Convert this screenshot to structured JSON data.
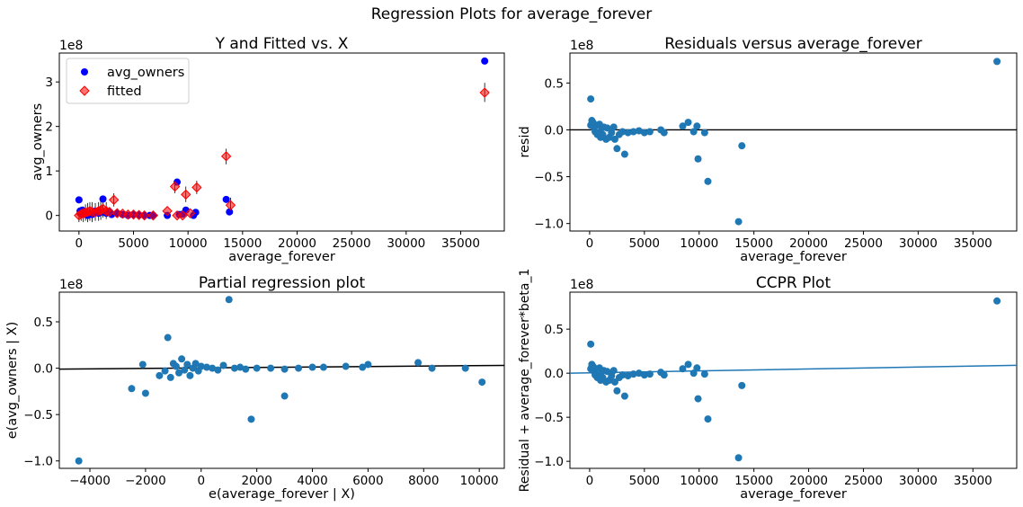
{
  "figure": {
    "suptitle": "Regression Plots for average_forever",
    "colors": {
      "blue": "#0000ff",
      "red": "#ff0000",
      "steel": "#1f77b4",
      "black": "#000000"
    }
  },
  "chart_data": [
    {
      "id": "yfit",
      "type": "scatter",
      "title": "Y and Fitted vs. X",
      "xlabel": "average_forever",
      "ylabel": "avg_owners",
      "offset_label": "1e8",
      "xlim": [
        -1800,
        39000
      ],
      "ylim": [
        -0.35,
        3.65
      ],
      "xticks": [
        0,
        5000,
        10000,
        15000,
        20000,
        25000,
        30000,
        35000
      ],
      "xtick_labels": [
        "0",
        "5000",
        "10000",
        "15000",
        "20000",
        "25000",
        "30000",
        "35000"
      ],
      "yticks": [
        0,
        1,
        2,
        3
      ],
      "ytick_labels": [
        "0",
        "1",
        "2",
        "3"
      ],
      "legend": {
        "position": "top-left",
        "entries": [
          "avg_owners",
          "fitted"
        ]
      },
      "series": [
        {
          "name": "avg_owners",
          "marker": "circle",
          "color": "#0000ff",
          "points": [
            [
              0,
              0.35
            ],
            [
              100,
              0.1
            ],
            [
              200,
              0.05
            ],
            [
              300,
              0.12
            ],
            [
              400,
              0.02
            ],
            [
              600,
              0.08
            ],
            [
              800,
              0.0
            ],
            [
              1000,
              0.05
            ],
            [
              1200,
              0.02
            ],
            [
              1500,
              0.1
            ],
            [
              1800,
              0.05
            ],
            [
              2000,
              0.07
            ],
            [
              2200,
              0.37
            ],
            [
              2500,
              0.05
            ],
            [
              2800,
              0.08
            ],
            [
              3000,
              0.02
            ],
            [
              3500,
              0.05
            ],
            [
              4000,
              0.02
            ],
            [
              4500,
              0.0
            ],
            [
              5000,
              0.02
            ],
            [
              5500,
              0.01
            ],
            [
              6000,
              0.0
            ],
            [
              6500,
              0.0
            ],
            [
              6800,
              0.0
            ],
            [
              8100,
              0.0
            ],
            [
              9000,
              0.75
            ],
            [
              9200,
              0.02
            ],
            [
              9500,
              0.03
            ],
            [
              9800,
              0.12
            ],
            [
              10500,
              0.0
            ],
            [
              10700,
              0.07
            ],
            [
              13500,
              0.36
            ],
            [
              13800,
              0.08
            ],
            [
              37200,
              3.47
            ]
          ]
        },
        {
          "name": "fitted",
          "marker": "diamond",
          "color": "#ff0000",
          "points": [
            [
              0,
              0.0
            ],
            [
              200,
              0.03
            ],
            [
              400,
              0.05
            ],
            [
              600,
              0.06
            ],
            [
              800,
              0.08
            ],
            [
              1000,
              0.1
            ],
            [
              1200,
              0.08
            ],
            [
              1500,
              0.07
            ],
            [
              1800,
              0.1
            ],
            [
              2000,
              0.12
            ],
            [
              2200,
              0.15
            ],
            [
              2500,
              0.1
            ],
            [
              2800,
              0.08
            ],
            [
              3200,
              0.35
            ],
            [
              3500,
              0.05
            ],
            [
              4000,
              0.04
            ],
            [
              4500,
              0.02
            ],
            [
              5000,
              0.02
            ],
            [
              5500,
              0.01
            ],
            [
              6000,
              0.0
            ],
            [
              6800,
              0.0
            ],
            [
              8100,
              0.1
            ],
            [
              8800,
              0.65
            ],
            [
              9000,
              0.0
            ],
            [
              9500,
              0.0
            ],
            [
              9800,
              0.47
            ],
            [
              10200,
              0.05
            ],
            [
              10800,
              0.63
            ],
            [
              13500,
              1.33
            ],
            [
              13900,
              0.23
            ],
            [
              37200,
              2.76
            ]
          ]
        }
      ],
      "error_bars": [
        [
          0,
          -0.15,
          0.15
        ],
        [
          200,
          -0.12,
          0.18
        ],
        [
          400,
          -0.15,
          0.2
        ],
        [
          600,
          -0.12,
          0.25
        ],
        [
          800,
          -0.15,
          0.28
        ],
        [
          1000,
          -0.12,
          0.3
        ],
        [
          1200,
          -0.15,
          0.3
        ],
        [
          1500,
          -0.12,
          0.28
        ],
        [
          1800,
          -0.12,
          0.3
        ],
        [
          2000,
          -0.1,
          0.35
        ],
        [
          2200,
          -0.05,
          0.4
        ],
        [
          2500,
          -0.08,
          0.3
        ],
        [
          3200,
          0.2,
          0.5
        ],
        [
          8800,
          0.5,
          0.8
        ],
        [
          9800,
          0.3,
          0.65
        ],
        [
          10800,
          0.48,
          0.78
        ],
        [
          13500,
          1.15,
          1.5
        ],
        [
          13900,
          0.1,
          0.4
        ],
        [
          37200,
          2.55,
          2.98
        ]
      ]
    },
    {
      "id": "resid",
      "type": "scatter",
      "title": "Residuals versus average_forever",
      "xlabel": "average_forever",
      "ylabel": "resid",
      "offset_label": "1e8",
      "xlim": [
        -1800,
        39000
      ],
      "ylim": [
        -1.08,
        0.82
      ],
      "xticks": [
        0,
        5000,
        10000,
        15000,
        20000,
        25000,
        30000,
        35000
      ],
      "xtick_labels": [
        "0",
        "5000",
        "10000",
        "15000",
        "20000",
        "25000",
        "30000",
        "35000"
      ],
      "yticks": [
        -1.0,
        -0.5,
        0.0,
        0.5
      ],
      "ytick_labels": [
        "−1.0",
        "−0.5",
        "0.0",
        "0.5"
      ],
      "hline": 0,
      "series": [
        {
          "name": "resid",
          "color": "#1f77b4",
          "points": [
            [
              100,
              0.33
            ],
            [
              100,
              0.05
            ],
            [
              200,
              0.1
            ],
            [
              300,
              0.08
            ],
            [
              400,
              0.02
            ],
            [
              500,
              -0.02
            ],
            [
              600,
              0.05
            ],
            [
              700,
              -0.05
            ],
            [
              800,
              -0.03
            ],
            [
              900,
              0.06
            ],
            [
              1000,
              -0.08
            ],
            [
              1100,
              0.02
            ],
            [
              1200,
              -0.05
            ],
            [
              1300,
              0.03
            ],
            [
              1500,
              -0.1
            ],
            [
              1600,
              0.02
            ],
            [
              1800,
              -0.08
            ],
            [
              2000,
              -0.03
            ],
            [
              2200,
              0.03
            ],
            [
              2300,
              -0.1
            ],
            [
              2500,
              -0.2
            ],
            [
              2700,
              -0.05
            ],
            [
              3000,
              -0.02
            ],
            [
              3200,
              -0.26
            ],
            [
              3500,
              -0.03
            ],
            [
              4000,
              -0.02
            ],
            [
              4500,
              -0.01
            ],
            [
              5000,
              -0.03
            ],
            [
              5500,
              -0.02
            ],
            [
              6500,
              0.0
            ],
            [
              6800,
              -0.03
            ],
            [
              8500,
              0.04
            ],
            [
              9000,
              0.08
            ],
            [
              9500,
              -0.02
            ],
            [
              9800,
              0.04
            ],
            [
              9900,
              -0.31
            ],
            [
              10500,
              -0.03
            ],
            [
              10800,
              -0.55
            ],
            [
              13600,
              -0.98
            ],
            [
              13900,
              -0.17
            ],
            [
              37200,
              0.73
            ]
          ]
        }
      ]
    },
    {
      "id": "partreg",
      "type": "scatter",
      "title": "Partial regression plot",
      "xlabel": "e(average_forever | X)",
      "ylabel": "e(avg_owners | X)",
      "offset_label": "1e8",
      "xlim": [
        -5100,
        10900
      ],
      "ylim": [
        -1.08,
        0.82
      ],
      "xticks": [
        -4000,
        -2000,
        0,
        2000,
        4000,
        6000,
        8000,
        10000
      ],
      "xtick_labels": [
        "−4000",
        "−2000",
        "0",
        "2000",
        "4000",
        "6000",
        "8000",
        "10000"
      ],
      "yticks": [
        -1.0,
        -0.5,
        0.0,
        0.5
      ],
      "ytick_labels": [
        "−1.0",
        "−0.5",
        "0.0",
        "0.5"
      ],
      "fit_line": {
        "x": [
          -5100,
          10900
        ],
        "y": [
          -0.01,
          0.03
        ],
        "color": "#000000"
      },
      "series": [
        {
          "name": "partial residuals",
          "color": "#1f77b4",
          "points": [
            [
              -4400,
              -1.0
            ],
            [
              -2500,
              -0.22
            ],
            [
              -2100,
              0.04
            ],
            [
              -2000,
              -0.27
            ],
            [
              -1500,
              -0.08
            ],
            [
              -1300,
              -0.03
            ],
            [
              -1200,
              0.33
            ],
            [
              -1100,
              -0.1
            ],
            [
              -1000,
              0.05
            ],
            [
              -900,
              0.02
            ],
            [
              -800,
              -0.05
            ],
            [
              -700,
              0.1
            ],
            [
              -600,
              -0.02
            ],
            [
              -500,
              0.04
            ],
            [
              -400,
              -0.08
            ],
            [
              -300,
              0.0
            ],
            [
              -200,
              0.05
            ],
            [
              -100,
              -0.03
            ],
            [
              0,
              0.02
            ],
            [
              200,
              0.01
            ],
            [
              400,
              0.0
            ],
            [
              600,
              -0.02
            ],
            [
              800,
              0.03
            ],
            [
              1000,
              0.74
            ],
            [
              1200,
              0.0
            ],
            [
              1400,
              0.01
            ],
            [
              1600,
              -0.01
            ],
            [
              1800,
              -0.55
            ],
            [
              2000,
              0.0
            ],
            [
              2500,
              0.0
            ],
            [
              3000,
              -0.01
            ],
            [
              3000,
              -0.3
            ],
            [
              3500,
              0.0
            ],
            [
              4000,
              0.01
            ],
            [
              4400,
              0.01
            ],
            [
              5200,
              0.02
            ],
            [
              5800,
              0.01
            ],
            [
              6000,
              0.04
            ],
            [
              7800,
              0.06
            ],
            [
              8300,
              0.0
            ],
            [
              9500,
              0.0
            ],
            [
              10100,
              -0.15
            ]
          ]
        }
      ]
    },
    {
      "id": "ccpr",
      "type": "scatter",
      "title": "CCPR Plot",
      "xlabel": "average_forever",
      "ylabel": "Residual + average_forever*beta_1",
      "offset_label": "1e8",
      "xlim": [
        -1800,
        39000
      ],
      "ylim": [
        -1.08,
        0.92
      ],
      "xticks": [
        0,
        5000,
        10000,
        15000,
        20000,
        25000,
        30000,
        35000
      ],
      "xtick_labels": [
        "0",
        "5000",
        "10000",
        "15000",
        "20000",
        "25000",
        "30000",
        "35000"
      ],
      "yticks": [
        -1.0,
        -0.5,
        0.0,
        0.5
      ],
      "ytick_labels": [
        "−1.0",
        "−0.5",
        "0.0",
        "0.5"
      ],
      "fit_line": {
        "x": [
          -1800,
          39000
        ],
        "y": [
          0.0,
          0.09
        ],
        "color": "#1f77b4"
      },
      "series": [
        {
          "name": "component + residual",
          "color": "#1f77b4",
          "points": [
            [
              100,
              0.33
            ],
            [
              100,
              0.05
            ],
            [
              200,
              0.1
            ],
            [
              300,
              0.08
            ],
            [
              400,
              0.02
            ],
            [
              500,
              -0.02
            ],
            [
              600,
              0.05
            ],
            [
              700,
              -0.05
            ],
            [
              800,
              -0.03
            ],
            [
              900,
              0.06
            ],
            [
              1000,
              -0.08
            ],
            [
              1100,
              0.02
            ],
            [
              1200,
              -0.05
            ],
            [
              1300,
              0.03
            ],
            [
              1500,
              -0.1
            ],
            [
              1600,
              0.02
            ],
            [
              1800,
              -0.08
            ],
            [
              2000,
              -0.03
            ],
            [
              2200,
              0.03
            ],
            [
              2300,
              -0.1
            ],
            [
              2500,
              -0.2
            ],
            [
              2700,
              -0.05
            ],
            [
              3000,
              -0.02
            ],
            [
              3200,
              -0.26
            ],
            [
              3500,
              -0.03
            ],
            [
              4000,
              -0.01
            ],
            [
              4500,
              0.0
            ],
            [
              5000,
              -0.02
            ],
            [
              5500,
              -0.01
            ],
            [
              6500,
              0.01
            ],
            [
              6800,
              -0.02
            ],
            [
              8500,
              0.05
            ],
            [
              9000,
              0.1
            ],
            [
              9500,
              0.0
            ],
            [
              9800,
              0.06
            ],
            [
              9900,
              -0.29
            ],
            [
              10500,
              -0.01
            ],
            [
              10800,
              -0.52
            ],
            [
              13600,
              -0.96
            ],
            [
              13900,
              -0.14
            ],
            [
              37200,
              0.82
            ]
          ]
        }
      ]
    }
  ]
}
